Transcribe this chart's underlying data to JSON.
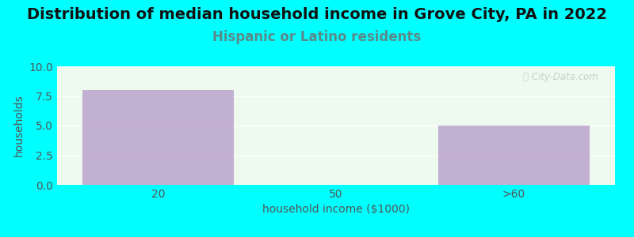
{
  "title": "Distribution of median household income in Grove City, PA in 2022",
  "subtitle": "Hispanic or Latino residents",
  "categories": [
    "20",
    "50",
    ">60"
  ],
  "values": [
    8,
    0,
    5
  ],
  "bar_color": "#b8a0cc",
  "xlabel": "household income ($1000)",
  "ylabel": "households",
  "ylim": [
    0,
    10
  ],
  "yticks": [
    0,
    2.5,
    5,
    7.5,
    10
  ],
  "background_color": "#00ffff",
  "plot_bg_color": "#edfaed",
  "title_fontsize": 14,
  "subtitle_fontsize": 12,
  "subtitle_color": "#5a8a8a",
  "axis_label_fontsize": 10,
  "tick_label_color": "#555555",
  "watermark_text": "ⓘ City-Data.com",
  "bar_width": 0.85
}
